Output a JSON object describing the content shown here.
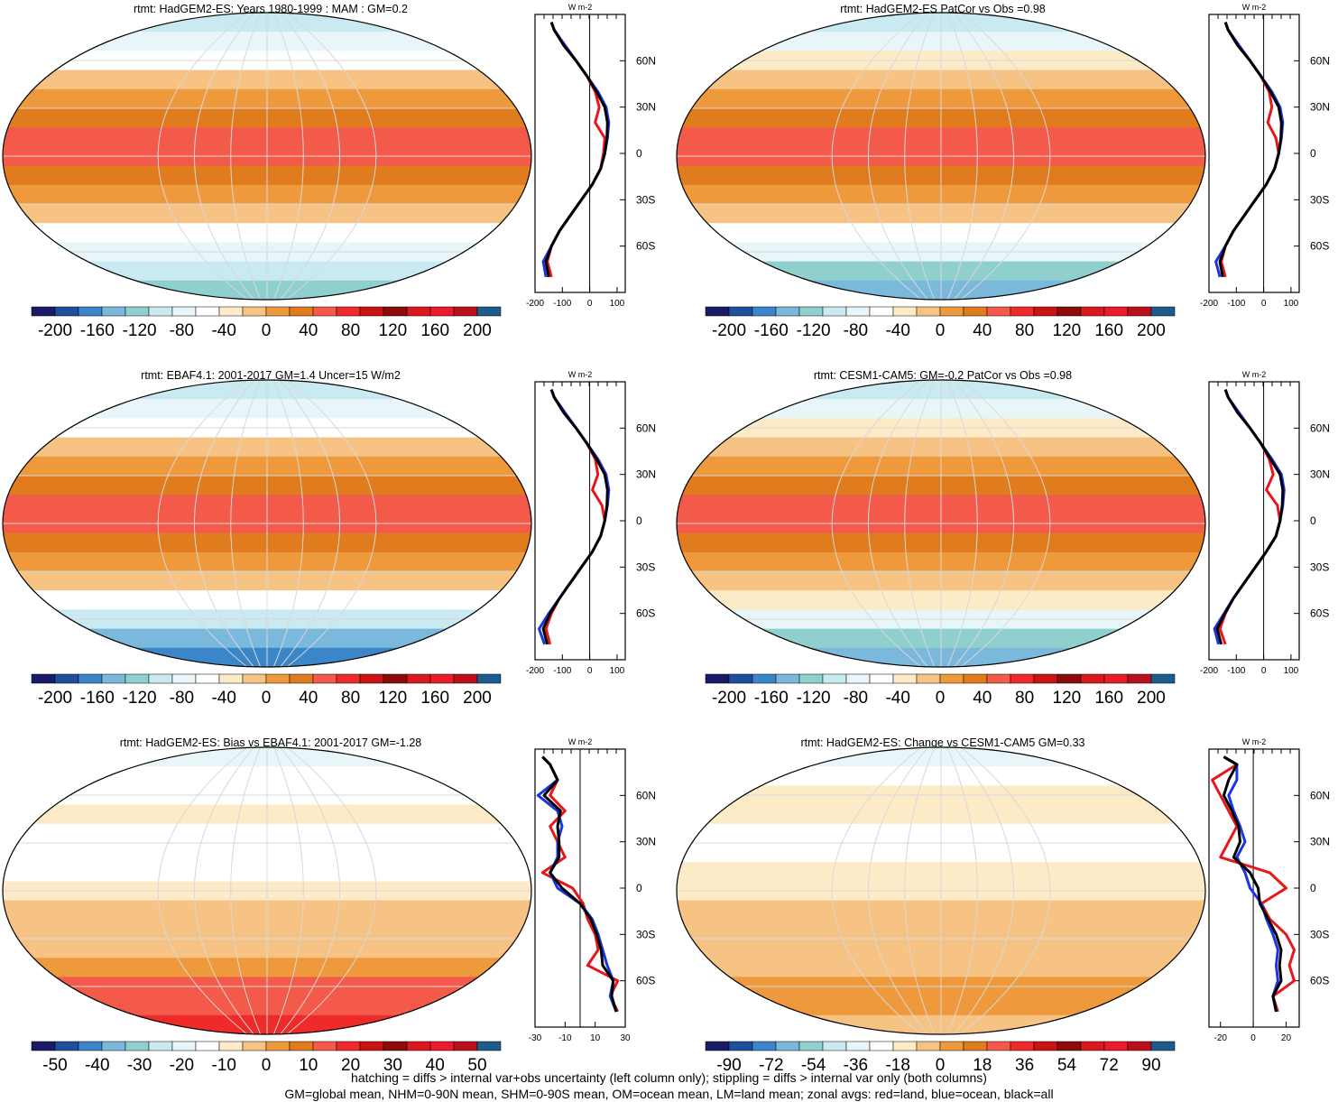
{
  "colors": {
    "ramp": [
      "#1a1a66",
      "#1f4f9c",
      "#3a86c8",
      "#7ab8dc",
      "#8fd0cf",
      "#c8eaf0",
      "#e9f6f9",
      "#ffffff",
      "#fdebc8",
      "#f6c384",
      "#ee9a3c",
      "#e07b1e",
      "#f35a4a",
      "#ee2a2a",
      "#c81414",
      "#8c0a0a",
      "#d9191e",
      "#ea1b2a",
      "#b80f1a",
      "#1c5b8c"
    ],
    "ocean_blue": "#1a35e6",
    "land_red": "#e8161b",
    "all_black": "#000000"
  },
  "footer": {
    "line1": "hatching = diffs > internal var+obs uncertainty (left column only); stippling = diffs > internal var only (both columns)",
    "line2": "GM=global mean, NHM=0-90N mean, SHM=0-90S mean, OM=ocean mean, LM=land mean; zonal avgs: red=land, blue=ocean, black=all"
  },
  "chart_data": [
    {
      "type": "heatmap",
      "title": "rtmt: HadGEM2-ES: Years 1980-1999 : MAM : GM=0.2",
      "colorbar_ticks": [
        "-200",
        "-160",
        "-120",
        "-80",
        "-40",
        "0",
        "40",
        "80",
        "120",
        "160",
        "200"
      ],
      "lat_ticks": [
        "60N",
        "30N",
        "0",
        "30S",
        "60S"
      ],
      "zonal": {
        "unit": "W m-2",
        "xlim": [
          -200,
          130
        ],
        "x_ticks": [
          "-200",
          "-100",
          "0",
          "100"
        ],
        "lat": [
          85,
          80,
          70,
          60,
          50,
          40,
          30,
          20,
          10,
          0,
          -10,
          -20,
          -30,
          -40,
          -50,
          -60,
          -70,
          -80
        ],
        "land": [
          -140,
          -130,
          -95,
          -50,
          -10,
          20,
          35,
          20,
          55,
          50,
          40,
          10,
          -30,
          -70,
          -110,
          -140,
          -155,
          -140
        ],
        "ocean": [
          -140,
          -130,
          -90,
          -50,
          -10,
          30,
          60,
          70,
          65,
          55,
          40,
          10,
          -30,
          -70,
          -110,
          -140,
          -170,
          -160
        ],
        "all": [
          -140,
          -130,
          -95,
          -50,
          -10,
          25,
          55,
          65,
          63,
          55,
          40,
          10,
          -30,
          -70,
          -110,
          -140,
          -160,
          -150
        ]
      }
    },
    {
      "type": "heatmap",
      "title": "rtmt: HadGEM2-ES PatCor vs Obs =0.98",
      "colorbar_ticks": [
        "-200",
        "-160",
        "-120",
        "-80",
        "-40",
        "0",
        "40",
        "80",
        "120",
        "160",
        "200"
      ],
      "lat_ticks": [
        "60N",
        "30N",
        "0",
        "30S",
        "60S"
      ],
      "zonal": {
        "unit": "W m-2",
        "xlim": [
          -200,
          130
        ],
        "x_ticks": [
          "-200",
          "-100",
          "0",
          "100"
        ],
        "lat": [
          85,
          80,
          70,
          60,
          50,
          40,
          30,
          20,
          10,
          0,
          -10,
          -20,
          -30,
          -40,
          -50,
          -60,
          -70,
          -80
        ],
        "land": [
          -140,
          -130,
          -95,
          -50,
          -10,
          20,
          30,
          15,
          45,
          55,
          40,
          10,
          -30,
          -70,
          -110,
          -140,
          -155,
          -140
        ],
        "ocean": [
          -140,
          -130,
          -90,
          -50,
          -10,
          30,
          60,
          70,
          65,
          55,
          40,
          10,
          -30,
          -70,
          -110,
          -140,
          -175,
          -160
        ],
        "all": [
          -140,
          -130,
          -95,
          -50,
          -10,
          25,
          55,
          65,
          63,
          55,
          40,
          10,
          -30,
          -70,
          -110,
          -140,
          -160,
          -150
        ]
      }
    },
    {
      "type": "heatmap",
      "title": "rtmt: EBAF4.1: 2001-2017 GM=1.4 Uncer=15 W/m2",
      "colorbar_ticks": [
        "-200",
        "-160",
        "-120",
        "-80",
        "-40",
        "0",
        "40",
        "80",
        "120",
        "160",
        "200"
      ],
      "lat_ticks": [
        "60N",
        "30N",
        "0",
        "30S",
        "60S"
      ],
      "zonal": {
        "unit": "W m-2",
        "xlim": [
          -200,
          130
        ],
        "x_ticks": [
          "-200",
          "-100",
          "0",
          "100"
        ],
        "lat": [
          85,
          80,
          70,
          60,
          50,
          40,
          30,
          20,
          10,
          0,
          -10,
          -20,
          -30,
          -40,
          -50,
          -60,
          -70,
          -80
        ],
        "land": [
          -140,
          -130,
          -95,
          -50,
          -10,
          20,
          30,
          10,
          45,
          55,
          40,
          10,
          -30,
          -70,
          -110,
          -140,
          -160,
          -145
        ],
        "ocean": [
          -140,
          -130,
          -90,
          -50,
          -10,
          30,
          60,
          70,
          65,
          55,
          40,
          10,
          -30,
          -70,
          -110,
          -150,
          -185,
          -165
        ],
        "all": [
          -140,
          -130,
          -95,
          -50,
          -10,
          25,
          55,
          65,
          63,
          55,
          40,
          10,
          -30,
          -70,
          -110,
          -145,
          -170,
          -155
        ]
      }
    },
    {
      "type": "heatmap",
      "title": "rtmt: CESM1-CAM5: GM=-0.2 PatCor vs Obs =0.98",
      "colorbar_ticks": [
        "-200",
        "-160",
        "-120",
        "-80",
        "-40",
        "0",
        "40",
        "80",
        "120",
        "160",
        "200"
      ],
      "lat_ticks": [
        "60N",
        "30N",
        "0",
        "30S",
        "60S"
      ],
      "zonal": {
        "unit": "W m-2",
        "xlim": [
          -200,
          130
        ],
        "x_ticks": [
          "-200",
          "-100",
          "0",
          "100"
        ],
        "lat": [
          85,
          80,
          70,
          60,
          50,
          40,
          30,
          20,
          10,
          0,
          -10,
          -20,
          -30,
          -40,
          -50,
          -60,
          -70,
          -80
        ],
        "land": [
          -140,
          -130,
          -95,
          -50,
          -10,
          20,
          35,
          10,
          50,
          60,
          45,
          10,
          -30,
          -70,
          -110,
          -140,
          -160,
          -140
        ],
        "ocean": [
          -140,
          -130,
          -90,
          -50,
          -10,
          30,
          65,
          75,
          70,
          60,
          45,
          10,
          -30,
          -70,
          -110,
          -145,
          -180,
          -165
        ],
        "all": [
          -140,
          -130,
          -95,
          -50,
          -10,
          25,
          60,
          70,
          68,
          60,
          45,
          10,
          -30,
          -70,
          -110,
          -142,
          -170,
          -155
        ]
      }
    },
    {
      "type": "heatmap",
      "title": "rtmt: HadGEM2-ES: Bias vs EBAF4.1: 2001-2017 GM=-1.28",
      "colorbar_ticks": [
        "-50",
        "-40",
        "-30",
        "-20",
        "-10",
        "0",
        "10",
        "20",
        "30",
        "40",
        "50"
      ],
      "lat_ticks": [
        "60N",
        "30N",
        "0",
        "30S",
        "60S"
      ],
      "zonal": {
        "unit": "W m-2",
        "xlim": [
          -30,
          30
        ],
        "x_ticks": [
          "-30",
          "-10",
          "10",
          "30"
        ],
        "lat": [
          85,
          80,
          70,
          60,
          50,
          40,
          30,
          20,
          10,
          0,
          -10,
          -20,
          -30,
          -40,
          -50,
          -60,
          -70,
          -80
        ],
        "land": [
          -25,
          -20,
          -15,
          -20,
          -10,
          -20,
          -15,
          -10,
          -25,
          -5,
          2,
          5,
          10,
          12,
          5,
          25,
          20,
          25
        ],
        "ocean": [
          -25,
          -20,
          -15,
          -28,
          -15,
          -12,
          -15,
          -15,
          -20,
          -15,
          0,
          8,
          12,
          15,
          18,
          22,
          20,
          24
        ],
        "all": [
          -25,
          -20,
          -15,
          -24,
          -13,
          -15,
          -14,
          -14,
          -20,
          -12,
          0,
          7,
          11,
          14,
          15,
          22,
          21,
          24
        ]
      }
    },
    {
      "type": "heatmap",
      "title": "rtmt: HadGEM2-ES: Change vs CESM1-CAM5 GM=0.33",
      "colorbar_ticks": [
        "-90",
        "-72",
        "-54",
        "-36",
        "-18",
        "0",
        "18",
        "36",
        "54",
        "72",
        "90"
      ],
      "lat_ticks": [
        "60N",
        "30N",
        "0",
        "30S",
        "60S"
      ],
      "zonal": {
        "unit": "W m-2",
        "xlim": [
          -27,
          28
        ],
        "x_ticks": [
          "-20",
          "0",
          "20"
        ],
        "lat": [
          85,
          80,
          70,
          60,
          50,
          40,
          30,
          20,
          10,
          0,
          -10,
          -20,
          -30,
          -40,
          -50,
          -60,
          -70,
          -80
        ],
        "land": [
          -18,
          -10,
          -25,
          -20,
          -15,
          -10,
          -15,
          -20,
          10,
          20,
          5,
          10,
          20,
          25,
          22,
          25,
          12,
          15
        ],
        "ocean": [
          -18,
          -10,
          -10,
          -15,
          -12,
          -8,
          -5,
          -10,
          -5,
          -2,
          5,
          8,
          12,
          15,
          14,
          15,
          12,
          14
        ],
        "all": [
          -18,
          -10,
          -15,
          -18,
          -13,
          -9,
          -8,
          -12,
          -2,
          3,
          4,
          9,
          14,
          17,
          16,
          17,
          12,
          14
        ]
      }
    }
  ]
}
